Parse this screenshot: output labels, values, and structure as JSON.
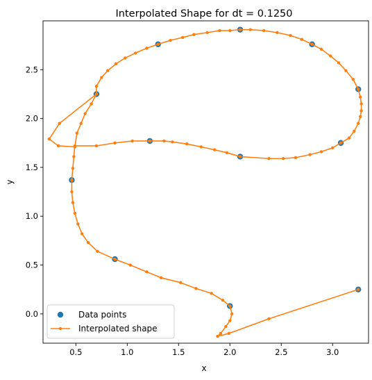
{
  "chart_data": {
    "type": "line",
    "title": "Interpolated Shape for dt = 0.1250",
    "xlabel": "x",
    "ylabel": "y",
    "xlim": [
      0.18,
      3.35
    ],
    "ylim": [
      -0.3,
      3.0
    ],
    "xticks": [
      {
        "v": 0.5,
        "label": "0.5"
      },
      {
        "v": 1.0,
        "label": "1.0"
      },
      {
        "v": 1.5,
        "label": "1.5"
      },
      {
        "v": 2.0,
        "label": "2.0"
      },
      {
        "v": 2.5,
        "label": "2.5"
      },
      {
        "v": 3.0,
        "label": "3.0"
      }
    ],
    "yticks": [
      {
        "v": 0.0,
        "label": "0.0"
      },
      {
        "v": 0.5,
        "label": "0.5"
      },
      {
        "v": 1.0,
        "label": "1.0"
      },
      {
        "v": 1.5,
        "label": "1.5"
      },
      {
        "v": 2.0,
        "label": "2.0"
      },
      {
        "v": 2.5,
        "label": "2.5"
      }
    ],
    "grid": false,
    "legend": {
      "position": "lower-left",
      "entries": [
        {
          "label": "Data points",
          "color": "#1f77b4",
          "marker": "circle"
        },
        {
          "label": "Interpolated shape",
          "color": "#ff7f0e",
          "marker": "line-dot"
        }
      ]
    },
    "series": [
      {
        "name": "Data points",
        "kind": "scatter",
        "color": "#1f77b4",
        "points": [
          [
            3.25,
            0.25
          ],
          [
            2.0,
            0.08
          ],
          [
            0.88,
            0.56
          ],
          [
            0.46,
            1.37
          ],
          [
            1.22,
            1.77
          ],
          [
            2.1,
            1.61
          ],
          [
            3.08,
            1.75
          ],
          [
            3.25,
            2.3
          ],
          [
            2.8,
            2.76
          ],
          [
            2.1,
            2.91
          ],
          [
            1.3,
            2.76
          ],
          [
            0.7,
            2.25
          ]
        ]
      },
      {
        "name": "Interpolated shape",
        "kind": "line",
        "color": "#ff7f0e",
        "points": [
          [
            3.25,
            0.25
          ],
          [
            2.38,
            -0.05
          ],
          [
            1.99,
            -0.2
          ],
          [
            1.88,
            -0.23
          ],
          [
            1.91,
            -0.2
          ],
          [
            1.96,
            -0.13
          ],
          [
            2.0,
            -0.07
          ],
          [
            2.02,
            0.0
          ],
          [
            2.0,
            0.08
          ],
          [
            1.93,
            0.14
          ],
          [
            1.82,
            0.21
          ],
          [
            1.67,
            0.26
          ],
          [
            1.52,
            0.32
          ],
          [
            1.33,
            0.37
          ],
          [
            1.19,
            0.43
          ],
          [
            1.03,
            0.5
          ],
          [
            0.88,
            0.56
          ],
          [
            0.71,
            0.64
          ],
          [
            0.62,
            0.73
          ],
          [
            0.56,
            0.82
          ],
          [
            0.52,
            0.92
          ],
          [
            0.49,
            1.03
          ],
          [
            0.47,
            1.14
          ],
          [
            0.46,
            1.25
          ],
          [
            0.46,
            1.37
          ],
          [
            0.47,
            1.49
          ],
          [
            0.48,
            1.61
          ],
          [
            0.49,
            1.72
          ],
          [
            0.7,
            1.72
          ],
          [
            0.88,
            1.75
          ],
          [
            1.05,
            1.77
          ],
          [
            1.22,
            1.77
          ],
          [
            1.36,
            1.77
          ],
          [
            1.44,
            1.76
          ],
          [
            1.58,
            1.74
          ],
          [
            1.72,
            1.71
          ],
          [
            1.85,
            1.68
          ],
          [
            1.97,
            1.65
          ],
          [
            2.1,
            1.61
          ],
          [
            2.38,
            1.59
          ],
          [
            2.52,
            1.59
          ],
          [
            2.64,
            1.6
          ],
          [
            2.78,
            1.63
          ],
          [
            2.89,
            1.66
          ],
          [
            3.0,
            1.7
          ],
          [
            3.08,
            1.75
          ],
          [
            3.16,
            1.8
          ],
          [
            3.21,
            1.87
          ],
          [
            3.25,
            1.95
          ],
          [
            3.27,
            2.02
          ],
          [
            3.28,
            2.08
          ],
          [
            3.28,
            2.15
          ],
          [
            3.27,
            2.22
          ],
          [
            3.25,
            2.3
          ],
          [
            3.2,
            2.4
          ],
          [
            3.13,
            2.49
          ],
          [
            3.06,
            2.57
          ],
          [
            2.98,
            2.64
          ],
          [
            2.89,
            2.71
          ],
          [
            2.8,
            2.76
          ],
          [
            2.7,
            2.81
          ],
          [
            2.59,
            2.85
          ],
          [
            2.46,
            2.88
          ],
          [
            2.33,
            2.9
          ],
          [
            2.2,
            2.91
          ],
          [
            2.1,
            2.91
          ],
          [
            2.0,
            2.9
          ],
          [
            1.9,
            2.9
          ],
          [
            1.78,
            2.88
          ],
          [
            1.65,
            2.86
          ],
          [
            1.54,
            2.83
          ],
          [
            1.42,
            2.8
          ],
          [
            1.3,
            2.76
          ],
          [
            1.19,
            2.72
          ],
          [
            1.08,
            2.67
          ],
          [
            0.98,
            2.62
          ],
          [
            0.89,
            2.56
          ],
          [
            0.81,
            2.49
          ],
          [
            0.75,
            2.42
          ],
          [
            0.7,
            2.33
          ],
          [
            0.7,
            2.25
          ],
          [
            0.34,
            1.95
          ],
          [
            0.24,
            1.79
          ],
          [
            0.33,
            1.72
          ],
          [
            0.49,
            1.71
          ],
          [
            0.51,
            1.85
          ],
          [
            0.55,
            1.95
          ],
          [
            0.59,
            2.05
          ],
          [
            0.65,
            2.15
          ],
          [
            0.7,
            2.25
          ]
        ]
      }
    ]
  }
}
